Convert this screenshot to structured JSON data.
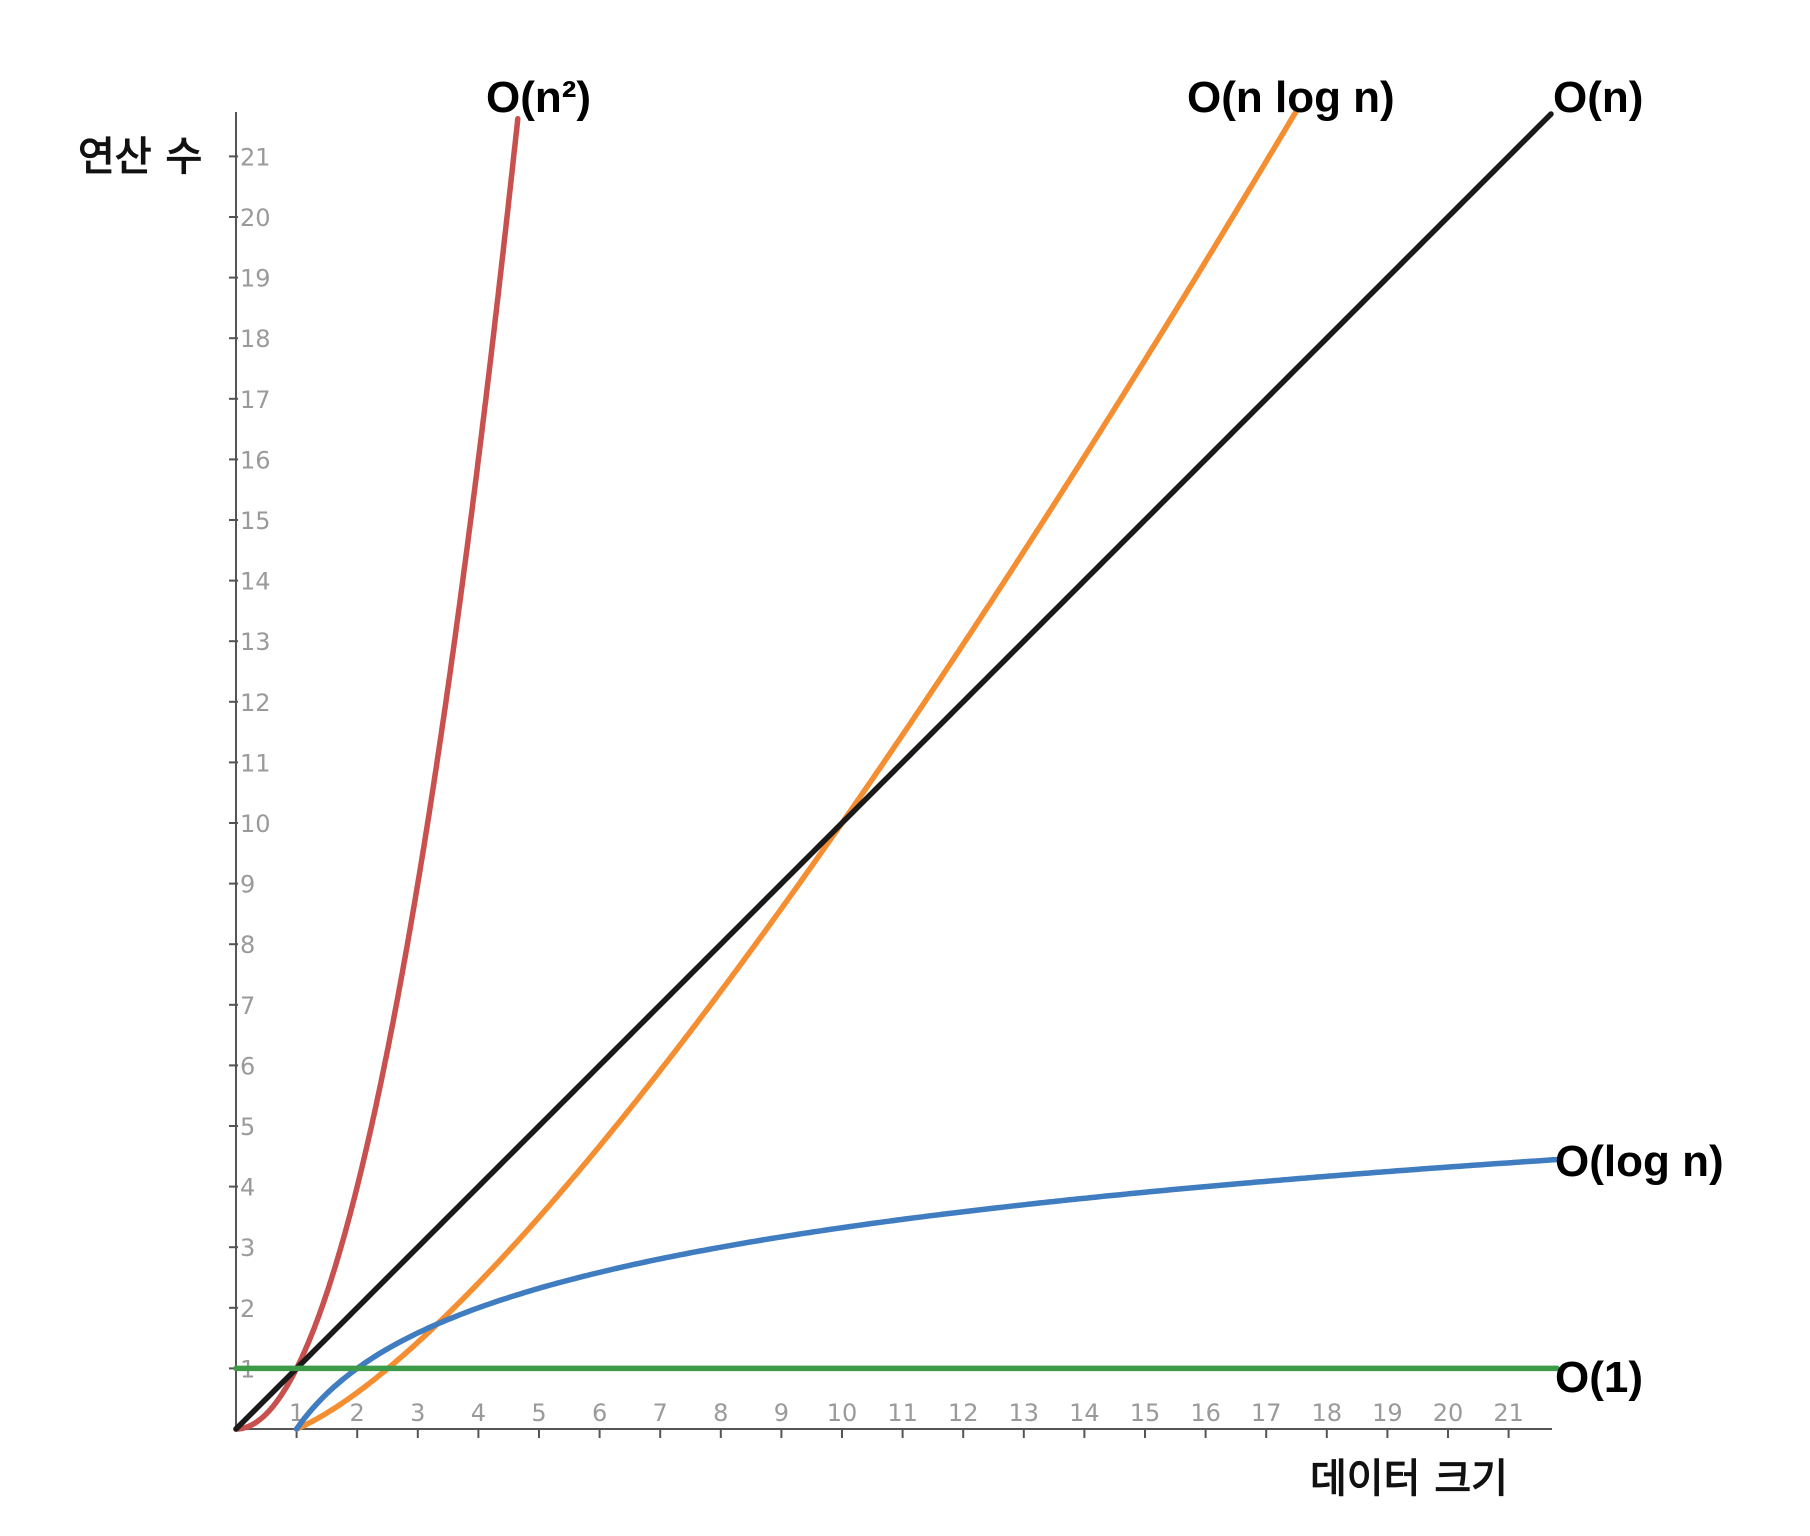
{
  "chart_data": {
    "type": "line",
    "xlabel": "데이터 크기",
    "ylabel": "연산 수",
    "xlim": [
      0,
      21.8
    ],
    "ylim": [
      0,
      21.8
    ],
    "grid": false,
    "x_ticks": [
      "1",
      "2",
      "3",
      "4",
      "5",
      "6",
      "7",
      "8",
      "9",
      "10",
      "11",
      "12",
      "13",
      "14",
      "15",
      "16",
      "17",
      "18",
      "19",
      "20",
      "21"
    ],
    "y_ticks": [
      "1",
      "2",
      "3",
      "4",
      "5",
      "6",
      "7",
      "8",
      "9",
      "10",
      "11",
      "12",
      "13",
      "14",
      "15",
      "16",
      "17",
      "18",
      "19",
      "20",
      "21"
    ],
    "series": [
      {
        "name": "O(n²)",
        "color": "#c8504f",
        "formula": "n^2",
        "x": [
          0,
          0.5,
          1,
          1.5,
          2,
          2.5,
          3,
          3.5,
          4,
          4.5,
          4.65
        ],
        "y": [
          0,
          0.25,
          1,
          2.25,
          4,
          6.25,
          9,
          12.25,
          16,
          20.25,
          21.6
        ]
      },
      {
        "name": "O(n log n)",
        "color": "#f58e30",
        "formula": "n*log2(n)/log2(10)*1",
        "x": [
          1,
          2,
          3,
          4,
          5,
          6,
          7,
          8,
          9,
          10,
          11,
          12,
          13,
          14,
          15,
          16,
          17,
          17.5
        ],
        "y": [
          0,
          0.6,
          1.4,
          2.4,
          3.5,
          4.7,
          5.9,
          7.2,
          8.6,
          10,
          11.5,
          12.9,
          14.5,
          16.0,
          17.6,
          19.3,
          20.9,
          21.7
        ]
      },
      {
        "name": "O(n)",
        "color": "#1a1a1a",
        "formula": "n",
        "x": [
          0,
          21.7
        ],
        "y": [
          0,
          21.7
        ]
      },
      {
        "name": "O(log n)",
        "color": "#3f7dc0",
        "formula": "log2(n)",
        "x": [
          1,
          2,
          3,
          4,
          5,
          6,
          7,
          8,
          9,
          10,
          12,
          14,
          16,
          18,
          20,
          21.8
        ],
        "y": [
          0,
          1.0,
          1.58,
          2.0,
          2.32,
          2.58,
          2.81,
          3.0,
          3.17,
          3.32,
          3.58,
          3.81,
          4.0,
          4.17,
          4.32,
          4.45
        ]
      },
      {
        "name": "O(1)",
        "color": "#3c9a48",
        "formula": "1",
        "x": [
          0,
          21.8
        ],
        "y": [
          1,
          1
        ]
      }
    ]
  }
}
